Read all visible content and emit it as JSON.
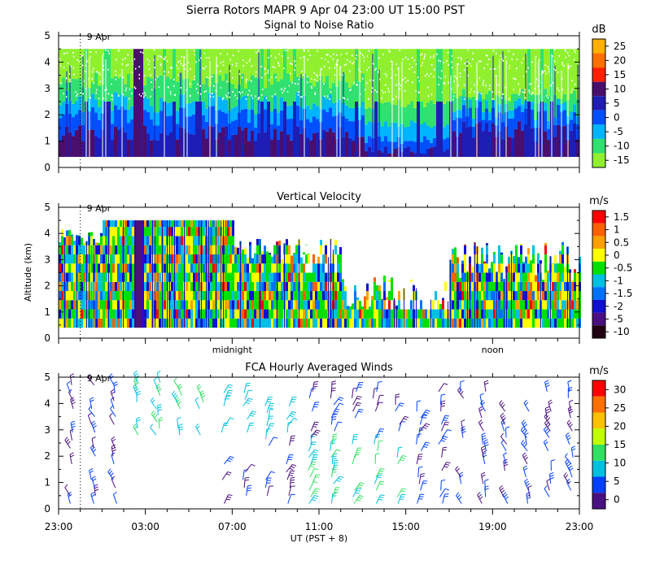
{
  "header": {
    "main_title": "Sierra Rotors   MAPR   9 Apr 04   23:00 UT   15:00   PST"
  },
  "chart_data": [
    {
      "type": "heatmap",
      "title": "Signal to Noise Ratio",
      "xlabel": "",
      "ylabel": "",
      "yticks": [
        "0",
        "1",
        "2",
        "3",
        "4",
        "5"
      ],
      "ylim": [
        0,
        5
      ],
      "annotations": [
        {
          "text": "9 Apr",
          "x_hours": 1
        }
      ],
      "colorbar": {
        "unit": "dB",
        "labels": [
          "25",
          "20",
          "15",
          "10",
          "5",
          "0",
          "-5",
          "-10",
          "-15"
        ],
        "colors": [
          "#ffb000",
          "#ff7000",
          "#ff2000",
          "#4a0f6e",
          "#1e1eb4",
          "#0050ff",
          "#00b4ff",
          "#30e070",
          "#90f030"
        ]
      }
    },
    {
      "type": "heatmap",
      "title": "Vertical Velocity",
      "xlabel": "",
      "ylabel": "Altitude (km)",
      "yticks": [
        "0",
        "1",
        "2",
        "3",
        "4",
        "5"
      ],
      "ylim": [
        0,
        5
      ],
      "annotations": [
        {
          "text": "9 Apr",
          "x_hours": 1
        },
        {
          "text": "midnight",
          "x_hours": 8
        },
        {
          "text": "noon",
          "x_hours": 20
        }
      ],
      "colorbar": {
        "unit": "m/s",
        "labels": [
          "1.5",
          "1",
          "0.5",
          "0",
          "-0.5",
          "-1",
          "-1.5",
          "-2",
          "-5",
          "-10"
        ],
        "colors": [
          "#ff0000",
          "#ff6000",
          "#ffa000",
          "#ffff00",
          "#00e000",
          "#00c0e0",
          "#0070ff",
          "#1010d0",
          "#4a0f80",
          "#200010"
        ]
      }
    },
    {
      "type": "scatter",
      "title": "FCA Hourly Averaged Winds",
      "xlabel": "UT  (PST + 8)",
      "ylabel": "",
      "xticks": [
        "23:00",
        "03:00",
        "07:00",
        "11:00",
        "15:00",
        "19:00",
        "23:00"
      ],
      "xlim_hours": [
        0,
        24
      ],
      "yticks": [
        "0",
        "1",
        "2",
        "3",
        "4",
        "5"
      ],
      "ylim": [
        0,
        5
      ],
      "annotations": [
        {
          "text": "9 Apr",
          "x_hours": 1
        }
      ],
      "colorbar": {
        "unit": "m/s",
        "labels": [
          "30",
          "25",
          "20",
          "15",
          "10",
          "5",
          "0"
        ],
        "colors": [
          "#ff0000",
          "#ff7000",
          "#ffc000",
          "#c0ff00",
          "#30e060",
          "#00c0e0",
          "#0040ff",
          "#4a0f80"
        ]
      }
    }
  ]
}
